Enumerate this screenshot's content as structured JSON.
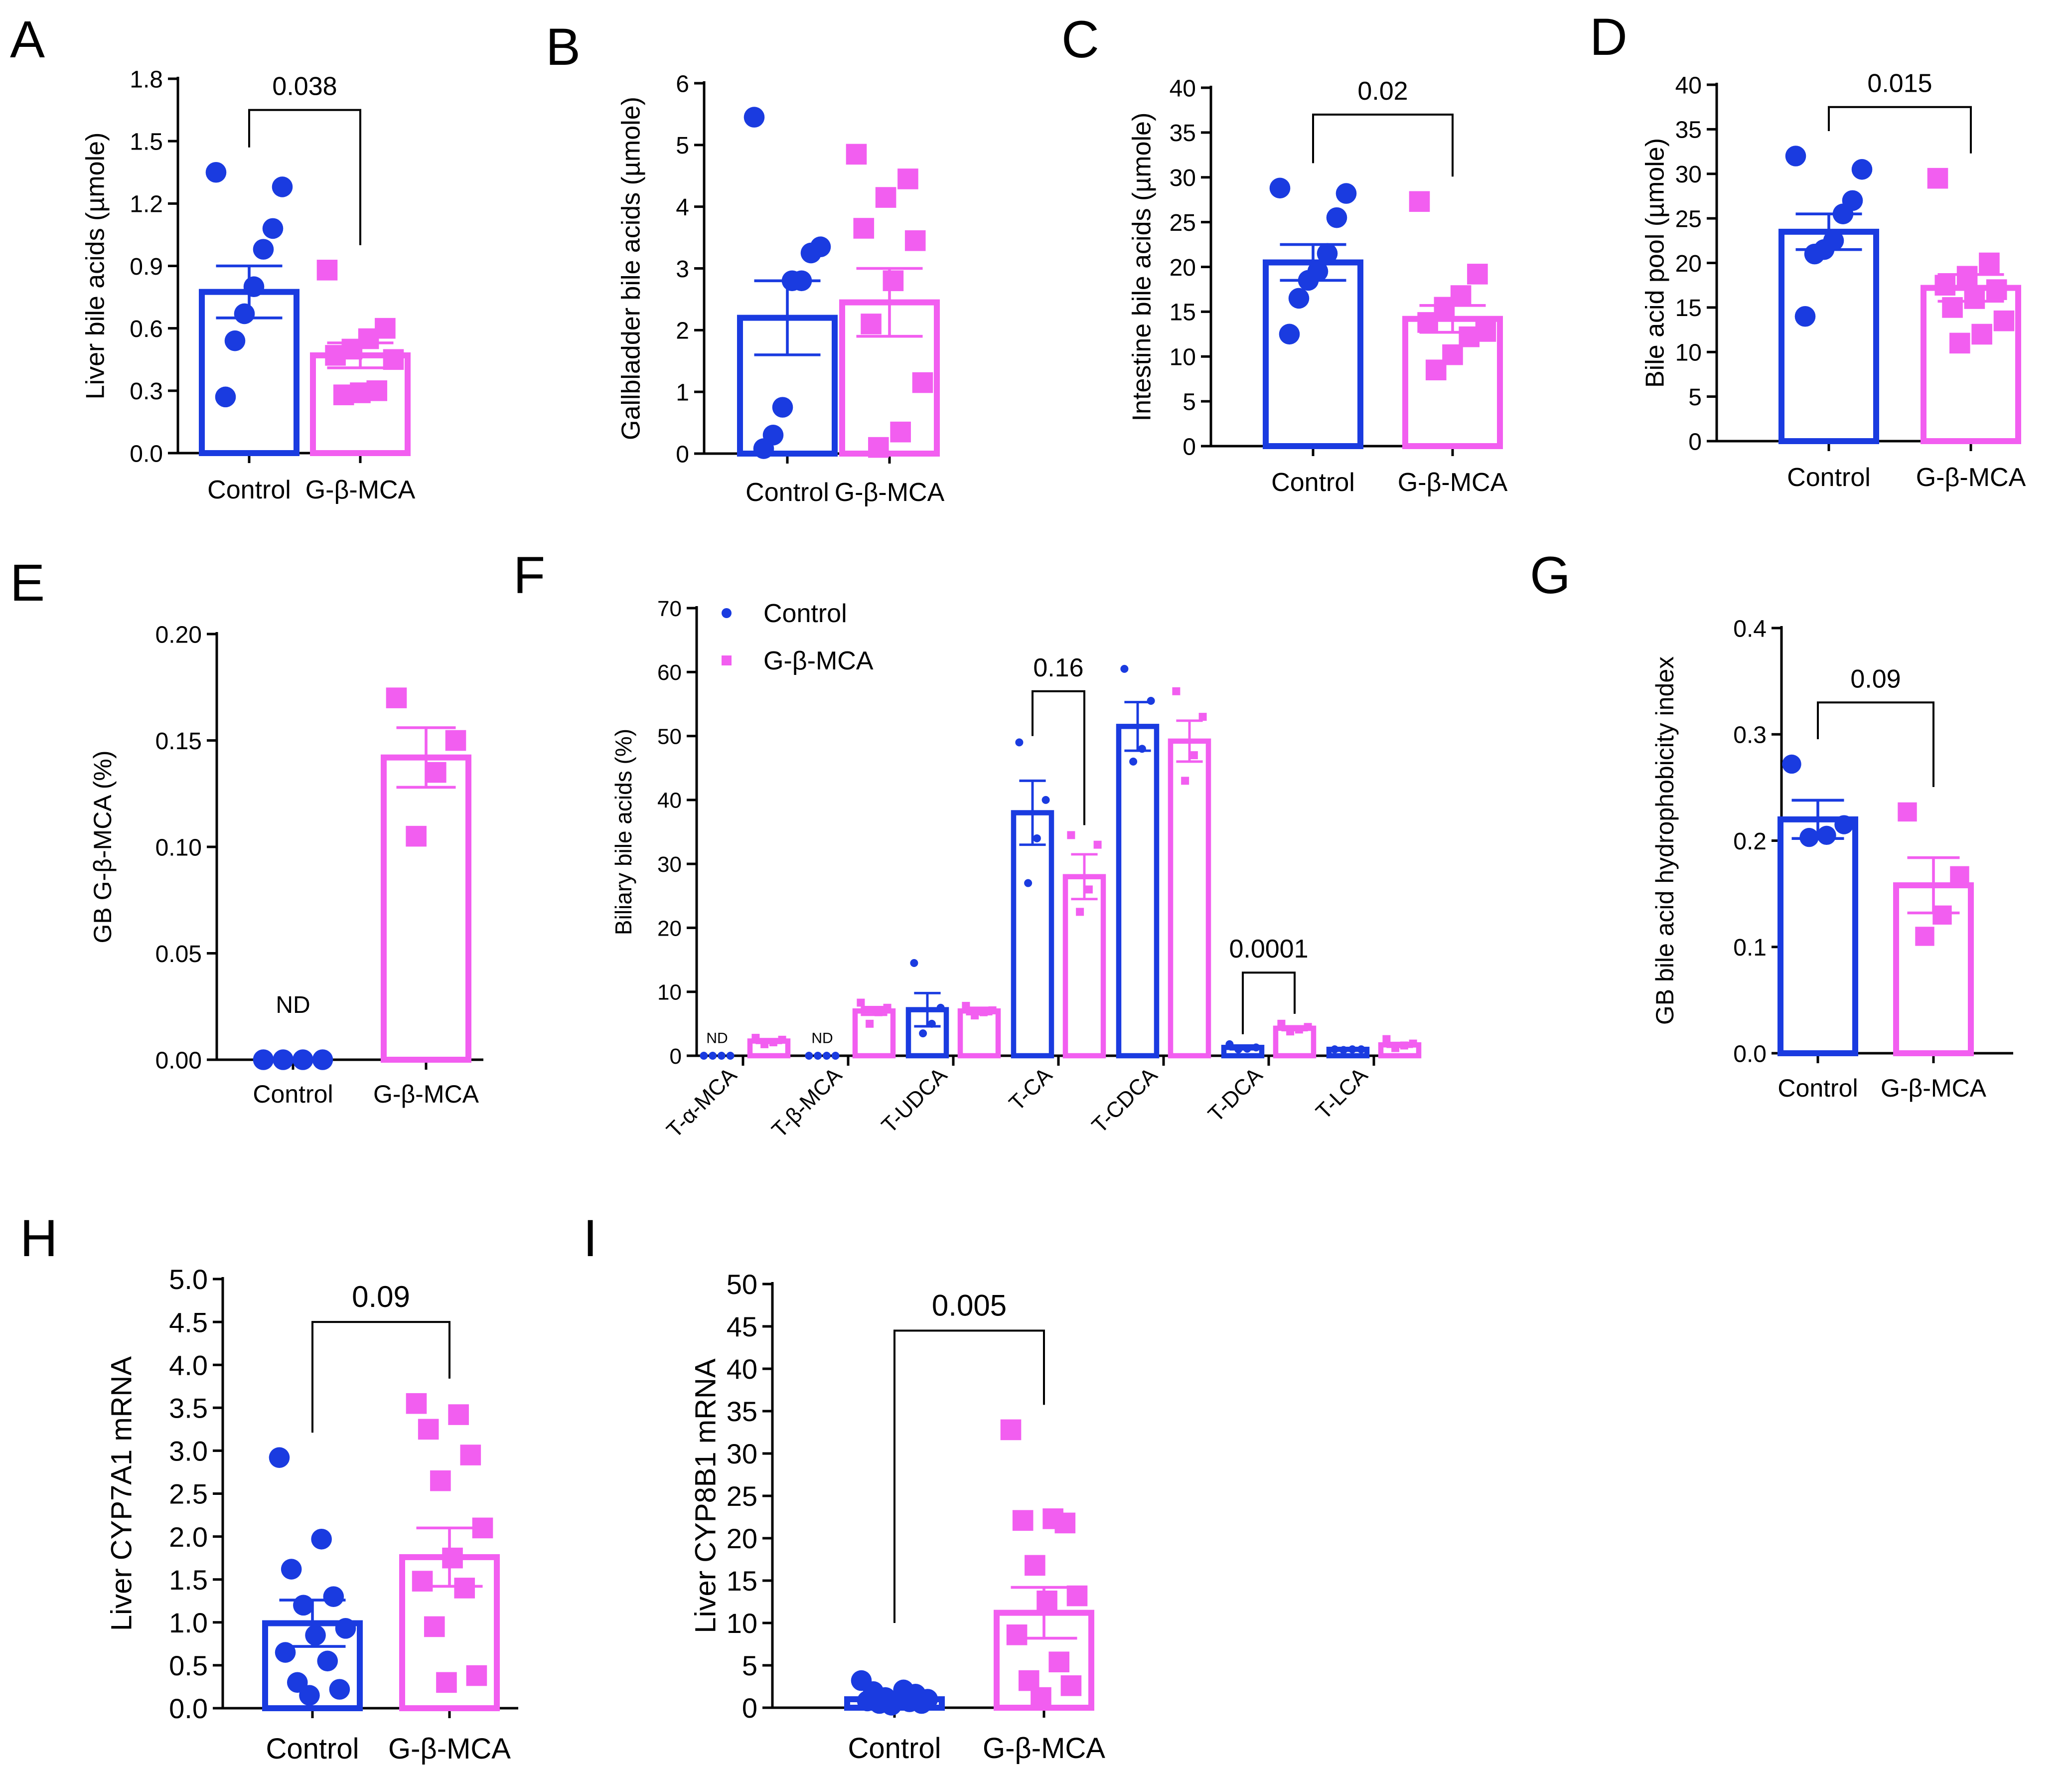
{
  "colors": {
    "control": "#1a3be0",
    "treated": "#f25ef0",
    "axis": "#000000"
  },
  "chart_data": [
    {
      "panel": "A",
      "type": "bar",
      "ylabel": "Liver bile acids (µmole)",
      "ylim": [
        0,
        1.8
      ],
      "yticks": [
        "0.0",
        "0.3",
        "0.6",
        "0.9",
        "1.2",
        "1.5",
        "1.8"
      ],
      "categories": [
        "Control",
        "G-β-MCA"
      ],
      "means": [
        0.775,
        0.47
      ],
      "sem": [
        0.125,
        0.06
      ],
      "points": [
        [
          1.35,
          1.28,
          1.08,
          0.98,
          0.8,
          0.67,
          0.54,
          0.27
        ],
        [
          0.88,
          0.6,
          0.55,
          0.5,
          0.47,
          0.45,
          0.3,
          0.29,
          0.28
        ]
      ],
      "comparison": {
        "label": "0.038",
        "y": 1.65
      }
    },
    {
      "panel": "B",
      "type": "bar",
      "ylabel": "Gallbladder bile acids (µmole)",
      "ylim": [
        0,
        6
      ],
      "yticks": [
        "0",
        "1",
        "2",
        "3",
        "4",
        "5",
        "6"
      ],
      "categories": [
        "Control",
        "G-β-MCA"
      ],
      "means": [
        2.2,
        2.45
      ],
      "sem": [
        0.6,
        0.55
      ],
      "points": [
        [
          5.45,
          3.35,
          3.25,
          2.8,
          2.8,
          0.75,
          0.3,
          0.08
        ],
        [
          4.85,
          4.45,
          4.15,
          3.65,
          3.45,
          2.8,
          2.1,
          1.15,
          0.35,
          0.1
        ]
      ]
    },
    {
      "panel": "C",
      "type": "bar",
      "ylabel": "Intestine bile acids (µmole)",
      "ylim": [
        0,
        40
      ],
      "yticks": [
        "0",
        "5",
        "10",
        "15",
        "20",
        "25",
        "30",
        "35",
        "40"
      ],
      "categories": [
        "Control",
        "G-β-MCA"
      ],
      "means": [
        20.5,
        14.2
      ],
      "sem": [
        2.0,
        1.5
      ],
      "points": [
        [
          28.8,
          28.2,
          25.5,
          21.5,
          19.5,
          18.5,
          16.5,
          12.5
        ],
        [
          27.3,
          19.2,
          16.8,
          15.5,
          13.8,
          12.8,
          12.2,
          10.2,
          8.5
        ]
      ],
      "comparison": {
        "label": "0.02",
        "y": 37
      }
    },
    {
      "panel": "D",
      "type": "bar",
      "ylabel": "Bile acid pool (µmole)",
      "ylim": [
        0,
        40
      ],
      "yticks": [
        "0",
        "5",
        "10",
        "15",
        "20",
        "25",
        "30",
        "35",
        "40"
      ],
      "categories": [
        "Control",
        "G-β-MCA"
      ],
      "means": [
        23.5,
        17.2
      ],
      "sem": [
        2.0,
        1.5
      ],
      "points": [
        [
          32,
          30.5,
          27,
          25.5,
          22.5,
          21.5,
          21,
          14
        ],
        [
          29.5,
          20,
          18.5,
          17.5,
          17,
          16,
          15,
          13.5,
          12,
          11
        ]
      ],
      "comparison": {
        "label": "0.015",
        "y": 37.5
      }
    },
    {
      "panel": "E",
      "type": "bar",
      "ylabel": "GB G-β-MCA (%)",
      "ylim": [
        0,
        0.2
      ],
      "yticks": [
        "0.00",
        "0.05",
        "0.10",
        "0.15",
        "0.20"
      ],
      "categories": [
        "Control",
        "G-β-MCA"
      ],
      "means": [
        0,
        0.142
      ],
      "sem": [
        0,
        0.014
      ],
      "points": [
        [
          0,
          0,
          0,
          0
        ],
        [
          0.17,
          0.15,
          0.135,
          0.105
        ]
      ],
      "annotations": [
        {
          "text": "ND",
          "category": 0,
          "y": 0.022
        }
      ]
    },
    {
      "panel": "F",
      "type": "bar",
      "ylabel": "Biliary bile acids (%)",
      "ylim": [
        0,
        70
      ],
      "yticks": [
        "0",
        "10",
        "20",
        "30",
        "40",
        "50",
        "60",
        "70"
      ],
      "categories": [
        "T-α-MCA",
        "T-β-MCA",
        "T-UDCA",
        "T-CA",
        "T-CDCA",
        "T-DCA",
        "T-LCA"
      ],
      "legend": [
        "Control",
        "G-β-MCA"
      ],
      "series": [
        {
          "name": "Control",
          "values": [
            0,
            0,
            7.2,
            38,
            51.5,
            1.3,
            1
          ],
          "sem": [
            0,
            0,
            2.6,
            5,
            3.8,
            0.3,
            0.1
          ],
          "points": [
            [
              0,
              0,
              0,
              0
            ],
            [
              0,
              0,
              0,
              0
            ],
            [
              14.5,
              7.5,
              5,
              3.5
            ],
            [
              49,
              40,
              34,
              27
            ],
            [
              60.5,
              55.5,
              48,
              46
            ],
            [
              1.8,
              1.3,
              1.1,
              1
            ],
            [
              1,
              1,
              1,
              0.9
            ]
          ]
        },
        {
          "name": "G-β-MCA",
          "values": [
            2.3,
            7,
            7,
            28,
            49.2,
            4.3,
            1.7
          ],
          "sem": [
            0.3,
            0.6,
            0.5,
            3.5,
            3.2,
            0.3,
            0.3
          ],
          "points": [
            [
              2.8,
              2.5,
              2.1,
              1.8
            ],
            [
              8.3,
              7.5,
              6.8,
              5
            ],
            [
              7.8,
              7.1,
              6.8,
              6.3
            ],
            [
              34.5,
              33,
              26,
              22.5
            ],
            [
              57,
              53,
              47,
              43
            ],
            [
              5,
              4.5,
              4.1,
              3.8
            ],
            [
              2.6,
              1.9,
              1.6,
              1.2
            ]
          ]
        }
      ],
      "annotations": [
        {
          "text": "ND",
          "category": 0,
          "y": 2
        },
        {
          "text": "ND",
          "category": 1,
          "y": 2
        }
      ],
      "comparisons": [
        {
          "label": "0.16",
          "category": 3,
          "y": 57
        },
        {
          "label": "0.0001",
          "category": 5,
          "y": 13
        }
      ]
    },
    {
      "panel": "G",
      "type": "bar",
      "ylabel": "GB bile acid hydrophobicity index",
      "ylim": [
        0,
        0.4
      ],
      "yticks": [
        "0.0",
        "0.1",
        "0.2",
        "0.3",
        "0.4"
      ],
      "categories": [
        "Control",
        "G-β-MCA"
      ],
      "means": [
        0.22,
        0.158
      ],
      "sem": [
        0.018,
        0.026
      ],
      "points": [
        [
          0.272,
          0.215,
          0.205,
          0.203
        ],
        [
          0.227,
          0.167,
          0.13,
          0.11
        ]
      ],
      "comparison": {
        "label": "0.09",
        "y": 0.33
      }
    },
    {
      "panel": "H",
      "type": "bar",
      "ylabel": "Liver CYP7A1 mRNA",
      "ylim": [
        0,
        5
      ],
      "yticks": [
        "0.0",
        "0.5",
        "1.0",
        "1.5",
        "2.0",
        "2.5",
        "3.0",
        "3.5",
        "4.0",
        "4.5",
        "5.0"
      ],
      "categories": [
        "Control",
        "G-β-MCA"
      ],
      "means": [
        0.99,
        1.76
      ],
      "sem": [
        0.27,
        0.34
      ],
      "points": [
        [
          2.92,
          1.97,
          1.62,
          1.3,
          1.2,
          0.93,
          0.85,
          0.65,
          0.55,
          0.3,
          0.22,
          0.15
        ],
        [
          3.55,
          3.42,
          3.25,
          2.95,
          2.65,
          2.1,
          1.75,
          1.48,
          1.4,
          0.95,
          0.38,
          0.3
        ]
      ],
      "comparison": {
        "label": "0.09",
        "y": 4.5
      }
    },
    {
      "panel": "I",
      "type": "bar",
      "ylabel": "Liver CYP8B1 mRNA",
      "ylim": [
        0,
        50
      ],
      "yticks": [
        "0",
        "5",
        "10",
        "15",
        "20",
        "25",
        "30",
        "35",
        "40",
        "45",
        "50"
      ],
      "categories": [
        "Control",
        "G-β-MCA"
      ],
      "means": [
        1,
        11.2
      ],
      "sem": [
        0.3,
        3.0
      ],
      "points": [
        [
          3.2,
          2.1,
          1.9,
          1.6,
          1.2,
          1.0,
          0.9,
          0.8,
          0.7,
          0.5,
          0.5,
          0.3
        ],
        [
          32.8,
          22.3,
          22.1,
          21.8,
          16.8,
          13.2,
          12.6,
          8.6,
          5.4,
          3.2,
          2.6,
          1.2
        ]
      ],
      "comparison": {
        "label": "0.005",
        "y": 44.5
      }
    }
  ]
}
